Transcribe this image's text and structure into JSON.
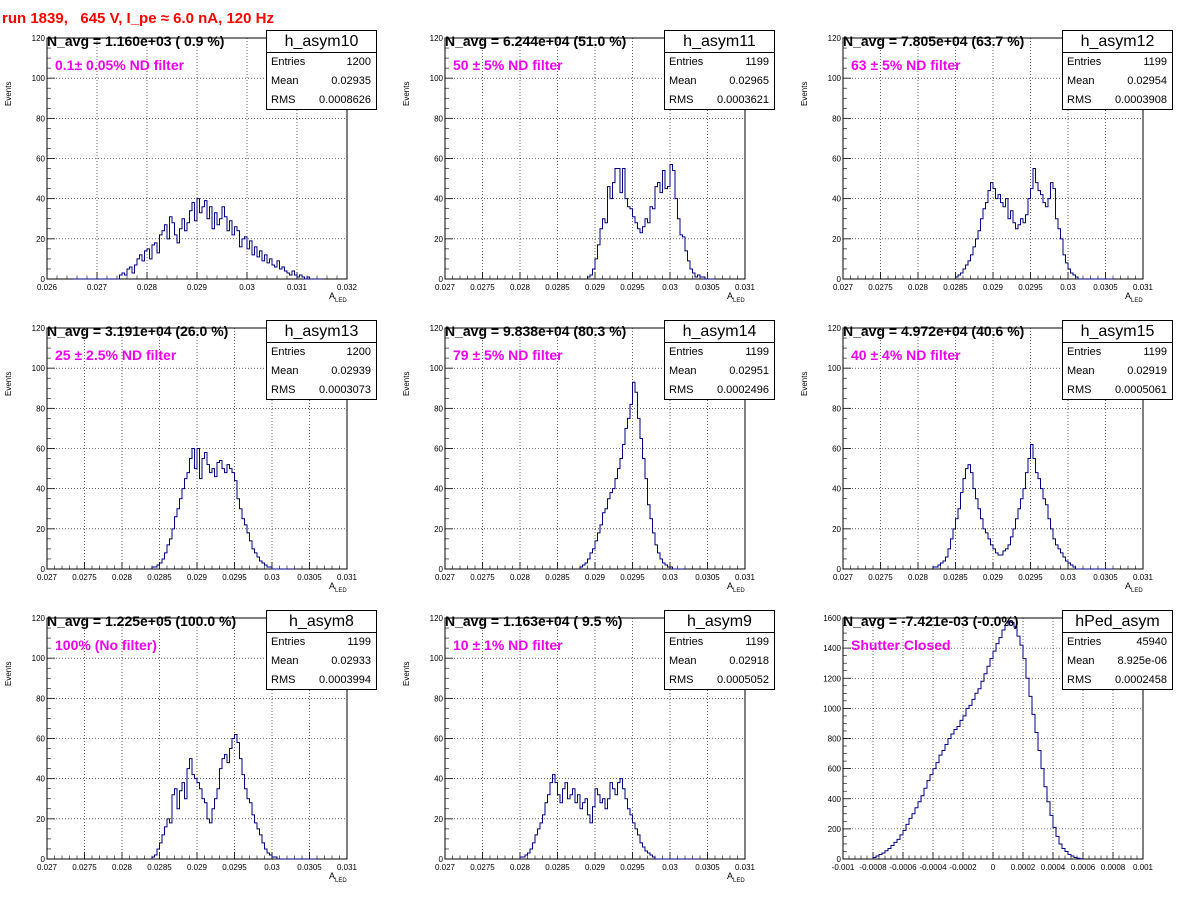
{
  "header": {
    "run_info": "run 1839,   645 V, I_pe ≈ 6.0 nA, 120 Hz"
  },
  "panels": [
    {
      "hist_name": "h_asym10",
      "n_avg": "N_avg = 1.160e+03 ( 0.9 %)",
      "filter": "0.1± 0.05% ND filter",
      "stats": {
        "entries_label": "Entries",
        "entries": "1200",
        "mean_label": "Mean",
        "mean": "0.02935",
        "rms_label": "RMS",
        "rms": "0.0008626"
      },
      "xlabel": "A",
      "xlabel_sub": "LED",
      "ylabel": "Events",
      "xlim": [
        0.026,
        0.032
      ],
      "ylim": [
        0,
        120
      ],
      "xticks": [
        "0.026",
        "0.027",
        "0.028",
        "0.029",
        "0.03",
        "0.031",
        "0.032"
      ],
      "yticks": [
        "0",
        "20",
        "40",
        "60",
        "80",
        "100",
        "120"
      ]
    },
    {
      "hist_name": "h_asym11",
      "n_avg": "N_avg = 6.244e+04 (51.0 %)",
      "filter": "50 ± 5% ND filter",
      "stats": {
        "entries_label": "Entries",
        "entries": "1199",
        "mean_label": "Mean",
        "mean": "0.02965",
        "rms_label": "RMS",
        "rms": "0.0003621"
      },
      "xlabel": "A",
      "xlabel_sub": "LED",
      "ylabel": "Events",
      "xlim": [
        0.027,
        0.031
      ],
      "ylim": [
        0,
        120
      ],
      "xticks": [
        "0.027",
        "0.0275",
        "0.028",
        "0.0285",
        "0.029",
        "0.0295",
        "0.03",
        "0.0305",
        "0.031"
      ],
      "yticks": [
        "0",
        "20",
        "40",
        "60",
        "80",
        "100",
        "120"
      ]
    },
    {
      "hist_name": "h_asym12",
      "n_avg": "N_avg = 7.805e+04 (63.7 %)",
      "filter": "63 ± 5% ND filter",
      "stats": {
        "entries_label": "Entries",
        "entries": "1199",
        "mean_label": "Mean",
        "mean": "0.02954",
        "rms_label": "RMS",
        "rms": "0.0003908"
      },
      "xlabel": "A",
      "xlabel_sub": "LED",
      "ylabel": "Events",
      "xlim": [
        0.027,
        0.031
      ],
      "ylim": [
        0,
        120
      ],
      "xticks": [
        "0.027",
        "0.0275",
        "0.028",
        "0.0285",
        "0.029",
        "0.0295",
        "0.03",
        "0.0305",
        "0.031"
      ],
      "yticks": [
        "0",
        "20",
        "40",
        "60",
        "80",
        "100",
        "120"
      ]
    },
    {
      "hist_name": "h_asym13",
      "n_avg": "N_avg = 3.191e+04 (26.0 %)",
      "filter": "25 ± 2.5% ND filter",
      "stats": {
        "entries_label": "Entries",
        "entries": "1200",
        "mean_label": "Mean",
        "mean": "0.02939",
        "rms_label": "RMS",
        "rms": "0.0003073"
      },
      "xlabel": "A",
      "xlabel_sub": "LED",
      "ylabel": "Events",
      "xlim": [
        0.027,
        0.031
      ],
      "ylim": [
        0,
        120
      ],
      "xticks": [
        "0.027",
        "0.0275",
        "0.028",
        "0.0285",
        "0.029",
        "0.0295",
        "0.03",
        "0.0305",
        "0.031"
      ],
      "yticks": [
        "0",
        "20",
        "40",
        "60",
        "80",
        "100",
        "120"
      ]
    },
    {
      "hist_name": "h_asym14",
      "n_avg": "N_avg = 9.838e+04 (80.3 %)",
      "filter": "79 ± 5% ND filter",
      "stats": {
        "entries_label": "Entries",
        "entries": "1199",
        "mean_label": "Mean",
        "mean": "0.02951",
        "rms_label": "RMS",
        "rms": "0.0002496"
      },
      "xlabel": "A",
      "xlabel_sub": "LED",
      "ylabel": "Events",
      "xlim": [
        0.027,
        0.031
      ],
      "ylim": [
        0,
        120
      ],
      "xticks": [
        "0.027",
        "0.0275",
        "0.028",
        "0.0285",
        "0.029",
        "0.0295",
        "0.03",
        "0.0305",
        "0.031"
      ],
      "yticks": [
        "0",
        "20",
        "40",
        "60",
        "80",
        "100",
        "120"
      ]
    },
    {
      "hist_name": "h_asym15",
      "n_avg": "N_avg = 4.972e+04 (40.6 %)",
      "filter": "40 ± 4% ND filter",
      "stats": {
        "entries_label": "Entries",
        "entries": "1199",
        "mean_label": "Mean",
        "mean": "0.02919",
        "rms_label": "RMS",
        "rms": "0.0005061"
      },
      "xlabel": "A",
      "xlabel_sub": "LED",
      "ylabel": "Events",
      "xlim": [
        0.027,
        0.031
      ],
      "ylim": [
        0,
        120
      ],
      "xticks": [
        "0.027",
        "0.0275",
        "0.028",
        "0.0285",
        "0.029",
        "0.0295",
        "0.03",
        "0.0305",
        "0.031"
      ],
      "yticks": [
        "0",
        "20",
        "40",
        "60",
        "80",
        "100",
        "120"
      ]
    },
    {
      "hist_name": "h_asym8",
      "n_avg": "N_avg = 1.225e+05 (100.0 %)",
      "filter": "100% (No filter)",
      "stats": {
        "entries_label": "Entries",
        "entries": "1199",
        "mean_label": "Mean",
        "mean": "0.02933",
        "rms_label": "RMS",
        "rms": "0.0003994"
      },
      "xlabel": "A",
      "xlabel_sub": "LED",
      "ylabel": "Events",
      "xlim": [
        0.027,
        0.031
      ],
      "ylim": [
        0,
        120
      ],
      "xticks": [
        "0.027",
        "0.0275",
        "0.028",
        "0.0285",
        "0.029",
        "0.0295",
        "0.03",
        "0.0305",
        "0.031"
      ],
      "yticks": [
        "0",
        "20",
        "40",
        "60",
        "80",
        "100",
        "120"
      ]
    },
    {
      "hist_name": "h_asym9",
      "n_avg": "N_avg = 1.163e+04 ( 9.5 %)",
      "filter": "10 ± 1% ND filter",
      "stats": {
        "entries_label": "Entries",
        "entries": "1199",
        "mean_label": "Mean",
        "mean": "0.02918",
        "rms_label": "RMS",
        "rms": "0.0005052"
      },
      "xlabel": "A",
      "xlabel_sub": "LED",
      "ylabel": "Events",
      "xlim": [
        0.027,
        0.031
      ],
      "ylim": [
        0,
        120
      ],
      "xticks": [
        "0.027",
        "0.0275",
        "0.028",
        "0.0285",
        "0.029",
        "0.0295",
        "0.03",
        "0.0305",
        "0.031"
      ],
      "yticks": [
        "0",
        "20",
        "40",
        "60",
        "80",
        "100",
        "120"
      ]
    },
    {
      "hist_name": "hPed_asym",
      "n_avg": "N_avg = -7.421e-03 (-0.0%)",
      "filter": "Shutter Closed",
      "stats": {
        "entries_label": "Entries",
        "entries": "45940",
        "mean_label": "Mean",
        "mean": "8.925e-06",
        "rms_label": "RMS",
        "rms": "0.0002458"
      },
      "xlabel": "",
      "xlabel_sub": "",
      "ylabel": "",
      "xlim": [
        -0.001,
        0.001
      ],
      "ylim": [
        0,
        1600
      ],
      "xticks": [
        "-0.001",
        "-0.0008",
        "-0.0006",
        "-0.0004",
        "-0.0002",
        "0",
        "0.0002",
        "0.0004",
        "0.0006",
        "0.0008",
        "0.001"
      ],
      "yticks": [
        "0",
        "200",
        "400",
        "600",
        "800",
        "1000",
        "1200",
        "1400",
        "1600"
      ]
    }
  ],
  "chart_data": [
    {
      "type": "histogram",
      "title": "h_asym10",
      "xlabel": "A_LED",
      "ylabel": "Events",
      "xlim": [
        0.026,
        0.032
      ],
      "ylim": [
        0,
        120
      ],
      "grid": true,
      "legend": "stats box top-right",
      "bin_edges_range": [
        0.0265,
        0.0315
      ],
      "bin_count": 100,
      "counts": [
        0,
        0,
        0,
        0,
        0,
        0,
        0,
        0,
        0,
        0,
        0,
        0,
        0,
        0,
        0,
        0,
        0,
        0,
        0,
        2,
        3,
        2,
        5,
        6,
        3,
        7,
        10,
        12,
        9,
        14,
        15,
        10,
        17,
        18,
        13,
        22,
        24,
        27,
        20,
        31,
        28,
        22,
        18,
        25,
        30,
        24,
        28,
        34,
        38,
        29,
        40,
        33,
        36,
        39,
        30,
        36,
        25,
        33,
        27,
        30,
        36,
        31,
        24,
        29,
        22,
        26,
        24,
        16,
        20,
        21,
        15,
        19,
        12,
        16,
        11,
        14,
        9,
        12,
        8,
        10,
        7,
        6,
        9,
        5,
        6,
        4,
        3,
        2,
        4,
        2,
        1,
        2,
        1,
        0,
        1,
        0,
        0,
        0,
        0,
        0
      ]
    },
    {
      "type": "histogram",
      "title": "h_asym11",
      "xlabel": "A_LED",
      "ylabel": "Events",
      "xlim": [
        0.027,
        0.031
      ],
      "ylim": [
        0,
        120
      ],
      "grid": true,
      "legend": "stats box top-right",
      "bin_edges_range": [
        0.0289,
        0.0306
      ],
      "bin_count": 51,
      "counts": [
        1,
        2,
        5,
        10,
        17,
        25,
        30,
        28,
        46,
        40,
        48,
        55,
        55,
        43,
        55,
        40,
        36,
        35,
        31,
        28,
        25,
        23,
        26,
        30,
        28,
        36,
        35,
        46,
        48,
        43,
        54,
        45,
        46,
        57,
        54,
        40,
        30,
        22,
        21,
        14,
        9,
        5,
        3,
        1,
        2,
        1,
        1,
        0,
        0,
        0,
        0
      ]
    },
    {
      "type": "histogram",
      "title": "h_asym12",
      "xlabel": "A_LED",
      "ylabel": "Events",
      "xlim": [
        0.027,
        0.031
      ],
      "ylim": [
        0,
        120
      ],
      "grid": true,
      "legend": "stats box top-right",
      "bin_edges_range": [
        0.0285,
        0.0306
      ],
      "bin_count": 63,
      "counts": [
        1,
        2,
        3,
        5,
        7,
        9,
        12,
        16,
        20,
        24,
        30,
        35,
        38,
        44,
        48,
        45,
        40,
        42,
        38,
        36,
        40,
        30,
        34,
        28,
        25,
        27,
        30,
        28,
        32,
        40,
        45,
        55,
        48,
        44,
        42,
        38,
        36,
        40,
        48,
        45,
        30,
        25,
        20,
        12,
        8,
        5,
        3,
        2,
        1,
        0,
        0,
        0,
        0,
        0,
        0,
        0,
        0,
        0,
        0,
        0,
        0,
        0,
        0
      ]
    },
    {
      "type": "histogram",
      "title": "h_asym13",
      "xlabel": "A_LED",
      "ylabel": "Events",
      "xlim": [
        0.027,
        0.031
      ],
      "ylim": [
        0,
        120
      ],
      "grid": true,
      "legend": "stats box top-right",
      "bin_edges_range": [
        0.0284,
        0.0303
      ],
      "bin_count": 57,
      "counts": [
        1,
        1,
        2,
        3,
        5,
        8,
        12,
        15,
        20,
        26,
        30,
        35,
        40,
        45,
        48,
        55,
        60,
        50,
        60,
        45,
        55,
        58,
        52,
        48,
        50,
        46,
        53,
        54,
        50,
        48,
        52,
        50,
        48,
        44,
        35,
        30,
        25,
        22,
        18,
        14,
        10,
        8,
        6,
        4,
        3,
        2,
        1,
        1,
        0,
        0,
        0,
        0,
        0,
        0,
        0,
        0,
        0
      ]
    },
    {
      "type": "histogram",
      "title": "h_asym14",
      "xlabel": "A_LED",
      "ylabel": "Events",
      "xlim": [
        0.027,
        0.031
      ],
      "ylim": [
        0,
        120
      ],
      "grid": true,
      "legend": "stats box top-right",
      "bin_edges_range": [
        0.0288,
        0.0302
      ],
      "bin_count": 42,
      "counts": [
        1,
        2,
        3,
        5,
        8,
        10,
        14,
        18,
        22,
        28,
        30,
        35,
        38,
        40,
        45,
        50,
        55,
        62,
        70,
        75,
        82,
        93,
        88,
        75,
        65,
        55,
        45,
        32,
        25,
        18,
        12,
        8,
        5,
        3,
        2,
        1,
        1,
        0,
        0,
        0,
        0,
        0
      ]
    },
    {
      "type": "histogram",
      "title": "h_asym15",
      "xlabel": "A_LED",
      "ylabel": "Events",
      "xlim": [
        0.027,
        0.031
      ],
      "ylim": [
        0,
        120
      ],
      "grid": true,
      "legend": "stats box top-right",
      "bin_edges_range": [
        0.0282,
        0.0306
      ],
      "bin_count": 72,
      "counts": [
        1,
        1,
        2,
        3,
        4,
        6,
        10,
        15,
        20,
        25,
        30,
        38,
        45,
        50,
        52,
        48,
        40,
        35,
        30,
        25,
        20,
        18,
        15,
        12,
        10,
        8,
        7,
        7,
        9,
        10,
        12,
        16,
        20,
        25,
        30,
        35,
        40,
        48,
        55,
        62,
        55,
        48,
        45,
        40,
        35,
        32,
        25,
        20,
        15,
        12,
        10,
        8,
        6,
        4,
        3,
        2,
        1,
        0,
        0,
        0,
        0,
        0,
        0,
        0,
        0,
        0,
        0,
        0,
        0,
        0,
        0,
        0
      ]
    },
    {
      "type": "histogram",
      "title": "h_asym8",
      "xlabel": "A_LED",
      "ylabel": "Events",
      "xlim": [
        0.027,
        0.031
      ],
      "ylim": [
        0,
        120
      ],
      "grid": true,
      "legend": "stats box top-right",
      "bin_edges_range": [
        0.0284,
        0.0306
      ],
      "bin_count": 66,
      "counts": [
        1,
        2,
        5,
        8,
        12,
        16,
        20,
        18,
        32,
        35,
        25,
        34,
        38,
        30,
        45,
        50,
        42,
        40,
        38,
        35,
        30,
        28,
        20,
        18,
        25,
        30,
        35,
        45,
        50,
        52,
        48,
        55,
        60,
        62,
        58,
        50,
        42,
        35,
        30,
        28,
        22,
        18,
        15,
        12,
        8,
        5,
        3,
        2,
        1,
        1,
        0,
        0,
        0,
        0,
        0,
        0,
        0,
        0,
        0,
        0,
        0,
        0,
        0,
        0,
        0,
        0
      ]
    },
    {
      "type": "histogram",
      "title": "h_asym9",
      "xlabel": "A_LED",
      "ylabel": "Events",
      "xlim": [
        0.027,
        0.031
      ],
      "ylim": [
        0,
        120
      ],
      "grid": true,
      "legend": "stats box top-right",
      "bin_edges_range": [
        0.028,
        0.0304
      ],
      "bin_count": 72,
      "counts": [
        1,
        1,
        2,
        3,
        5,
        8,
        12,
        15,
        18,
        22,
        28,
        32,
        38,
        42,
        38,
        32,
        28,
        35,
        38,
        30,
        32,
        35,
        28,
        32,
        25,
        28,
        30,
        22,
        18,
        26,
        35,
        32,
        28,
        30,
        25,
        30,
        38,
        35,
        32,
        38,
        40,
        35,
        30,
        25,
        22,
        18,
        15,
        12,
        8,
        6,
        4,
        3,
        2,
        1,
        0,
        0,
        0,
        0,
        0,
        0,
        0,
        0,
        0,
        0,
        0,
        0,
        0,
        0,
        0,
        0,
        0,
        0
      ]
    },
    {
      "type": "histogram",
      "title": "hPed_asym",
      "xlabel": "",
      "ylabel": "",
      "xlim": [
        -0.001,
        0.001
      ],
      "ylim": [
        0,
        1600
      ],
      "grid": true,
      "legend": "stats box top-right",
      "bin_edges_range": [
        -0.0008,
        0.0006
      ],
      "bin_count": 70,
      "counts": [
        10,
        20,
        30,
        40,
        55,
        70,
        90,
        110,
        130,
        160,
        190,
        230,
        270,
        300,
        340,
        380,
        420,
        470,
        520,
        560,
        600,
        640,
        690,
        720,
        760,
        800,
        830,
        860,
        880,
        920,
        950,
        1000,
        1020,
        1060,
        1100,
        1130,
        1180,
        1230,
        1280,
        1330,
        1380,
        1430,
        1470,
        1520,
        1550,
        1580,
        1570,
        1540,
        1480,
        1420,
        1330,
        1200,
        1080,
        960,
        840,
        720,
        600,
        480,
        380,
        290,
        210,
        150,
        100,
        70,
        50,
        30,
        20,
        10,
        5,
        2
      ]
    }
  ]
}
